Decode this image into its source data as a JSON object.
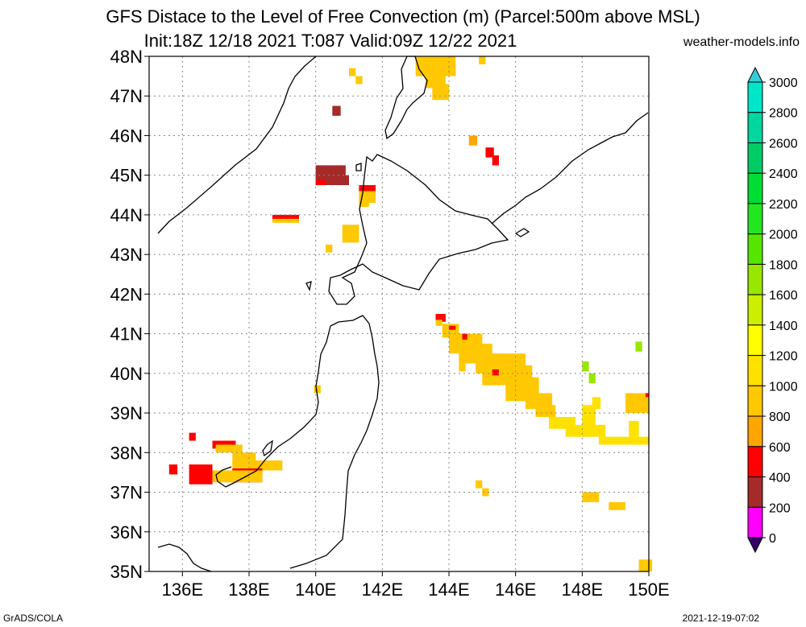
{
  "title_line1": "GFS Distace to the Level of Free Convection (m) (Parcel:500m above MSL)",
  "title_line2": "Init:18Z 12/18 2021 T:087 Valid:09Z 12/22 2021",
  "site": "weather-models.info",
  "footer_left": "GrADS/COLA",
  "footer_right": "2021-12-19-07:02",
  "map": {
    "lat_labels": [
      "48N",
      "47N",
      "46N",
      "45N",
      "44N",
      "43N",
      "42N",
      "41N",
      "40N",
      "39N",
      "38N",
      "37N",
      "36N",
      "35N"
    ],
    "lon_labels": [
      "136E",
      "138E",
      "140E",
      "142E",
      "144E",
      "146E",
      "148E",
      "150E"
    ],
    "lon_range": [
      135,
      150
    ],
    "lat_range": [
      35,
      48
    ]
  },
  "colorbar": {
    "labels": [
      "3000",
      "2800",
      "2600",
      "2400",
      "2200",
      "2000",
      "1800",
      "1600",
      "1400",
      "1200",
      "1000",
      "800",
      "600",
      "400",
      "200",
      "0"
    ],
    "colors": [
      "#00e6c8",
      "#00d69e",
      "#00cc66",
      "#00dd33",
      "#22e622",
      "#55e600",
      "#99e600",
      "#ccee00",
      "#ffff00",
      "#ffe100",
      "#ffc800",
      "#ffa500",
      "#ff0000",
      "#a52a2a",
      "#ff00ff",
      "#330099"
    ],
    "top_arrow_color": "#33ccdd",
    "bottom_arrow_color": "#330066"
  },
  "cell_colors": {
    "red": "#ff0000",
    "brown": "#a52a2a",
    "orange": "#ffa500",
    "gold": "#ffc800",
    "yellow": "#ffe100",
    "green": "#99e600"
  }
}
